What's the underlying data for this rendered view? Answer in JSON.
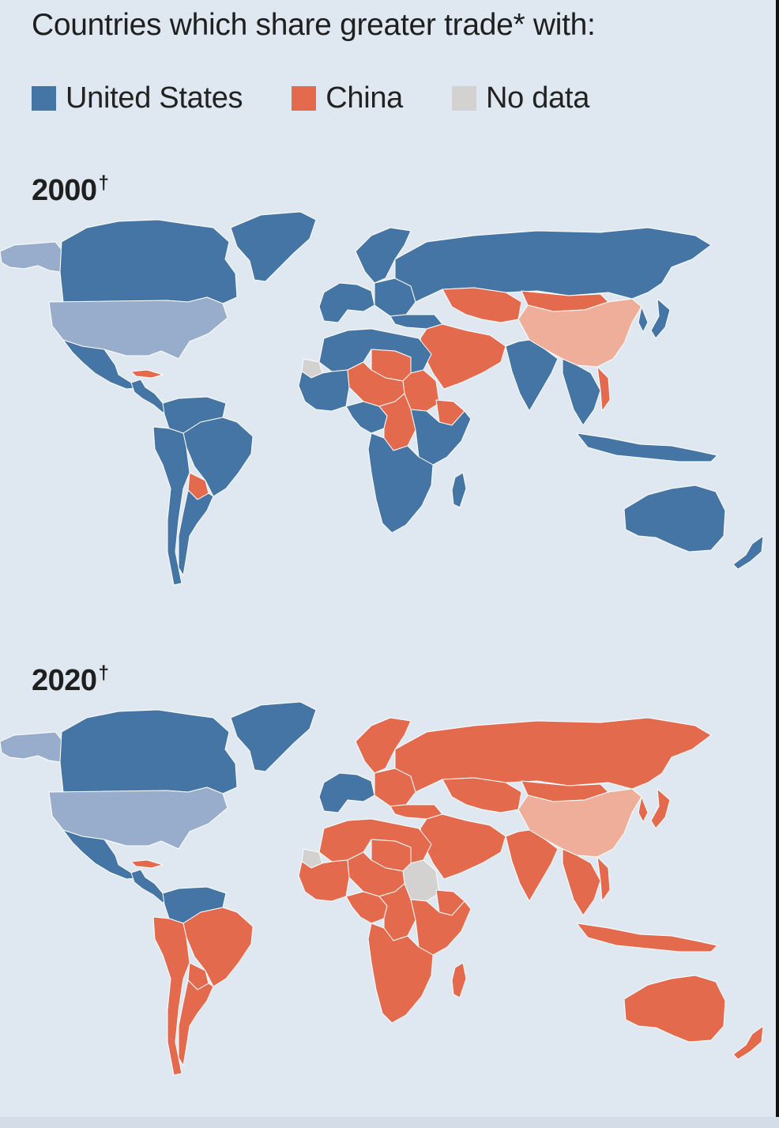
{
  "title": "Countries which share greater trade* with:",
  "legend": [
    {
      "label": "United States",
      "color": "#4575a4"
    },
    {
      "label": "China",
      "color": "#e46a4e"
    },
    {
      "label": "No data",
      "color": "#d4d2d1"
    }
  ],
  "panels": [
    {
      "year": "2000",
      "mark": "†"
    },
    {
      "year": "2020",
      "mark": "†"
    }
  ],
  "colors": {
    "background": "#dfe8f0",
    "us": "#4575a4",
    "us_self": "#97adcb",
    "china": "#e46a4e",
    "china_self": "#efae9a",
    "no_data": "#d4d2d1",
    "border": "#ffffff"
  },
  "map_data": [
    {
      "year": "2000",
      "regions": {
        "greenland": "us",
        "canada": "us",
        "alaska": "us_self",
        "usa": "us_self",
        "mexico": "us",
        "central_america": "us",
        "cuba": "china",
        "colombia_venezuela": "us",
        "brazil": "us",
        "andes": "us",
        "southern_cone": "us",
        "paraguay": "china",
        "western_europe": "us",
        "scandinavia": "us",
        "eastern_europe": "us",
        "russia": "us",
        "kazakhstan_central_asia": "china",
        "mongolia": "china",
        "china": "china_self",
        "korea_japan": "us",
        "middle_east": "china",
        "turkey": "us",
        "india": "us",
        "southeast_asia": "us",
        "vietnam": "china",
        "north_africa": "us",
        "libya": "china",
        "sudan": "china",
        "west_africa": "us",
        "sahel": "china",
        "central_africa": "us",
        "drc": "china",
        "east_africa": "us",
        "ethiopia": "china",
        "southern_africa": "us",
        "madagascar": "us",
        "indonesia": "us",
        "australia": "us",
        "new_zealand": "us",
        "western_sahara": "no_data"
      }
    },
    {
      "year": "2020",
      "regions": {
        "greenland": "us",
        "canada": "us",
        "alaska": "us_self",
        "usa": "us_self",
        "mexico": "us",
        "central_america": "us",
        "cuba": "china",
        "colombia_venezuela": "us",
        "brazil": "china",
        "andes": "china",
        "southern_cone": "china",
        "paraguay": "china",
        "western_europe": "us",
        "scandinavia": "china",
        "eastern_europe": "china",
        "russia": "china",
        "kazakhstan_central_asia": "china",
        "mongolia": "china",
        "china": "china_self",
        "korea_japan": "china",
        "middle_east": "china",
        "turkey": "china",
        "india": "china",
        "southeast_asia": "china",
        "vietnam": "china",
        "north_africa": "china",
        "libya": "china",
        "sudan": "no_data",
        "west_africa": "china",
        "sahel": "china",
        "central_africa": "china",
        "drc": "china",
        "east_africa": "china",
        "ethiopia": "china",
        "southern_africa": "china",
        "madagascar": "china",
        "indonesia": "china",
        "australia": "china",
        "new_zealand": "china",
        "western_sahara": "no_data"
      }
    }
  ]
}
